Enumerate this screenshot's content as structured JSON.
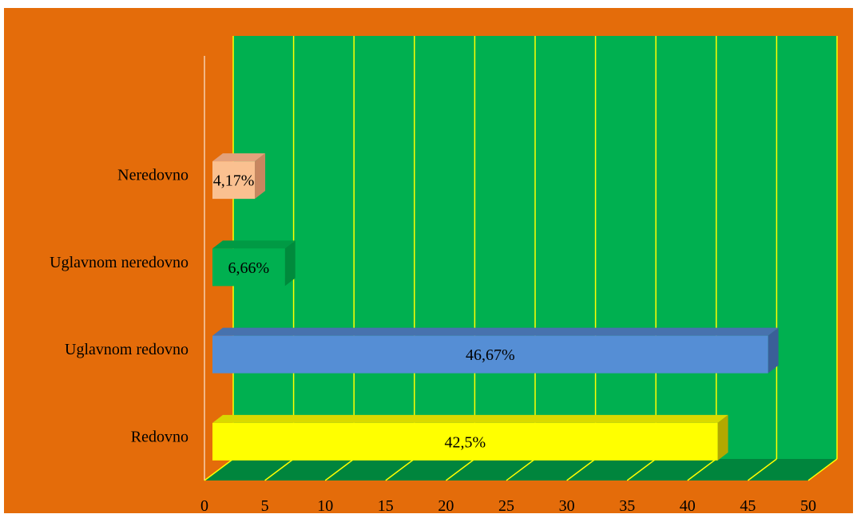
{
  "chart_data": {
    "type": "bar",
    "orientation": "horizontal",
    "style": "3d",
    "categories": [
      "Redovno",
      "Uglavnom redovno",
      "Uglavnom neredovno",
      "Neredovno"
    ],
    "values": [
      42.5,
      46.67,
      6.66,
      4.17
    ],
    "data_labels": [
      "42,5%",
      "46,67%",
      "6,66%",
      "4,17%"
    ],
    "xlim": [
      0,
      50
    ],
    "x_ticks": [
      "0",
      "5",
      "10",
      "15",
      "20",
      "25",
      "30",
      "35",
      "40",
      "45",
      "50"
    ],
    "grid": true,
    "legend": "none",
    "colors": {
      "background": "#E46C0A",
      "plot_wall": "#00B050",
      "floor": "#00853D",
      "gridline": "#FFFF00",
      "bars": [
        "#FFFF00",
        "#558ED5",
        "#00B050",
        "#FAC090"
      ],
      "bar_sides": [
        "#B3A800",
        "#3A5F98",
        "#008A3C",
        "#C88660"
      ],
      "bar_tops": [
        "#D9D900",
        "#4772AE",
        "#009A44",
        "#E3A27C"
      ]
    }
  }
}
